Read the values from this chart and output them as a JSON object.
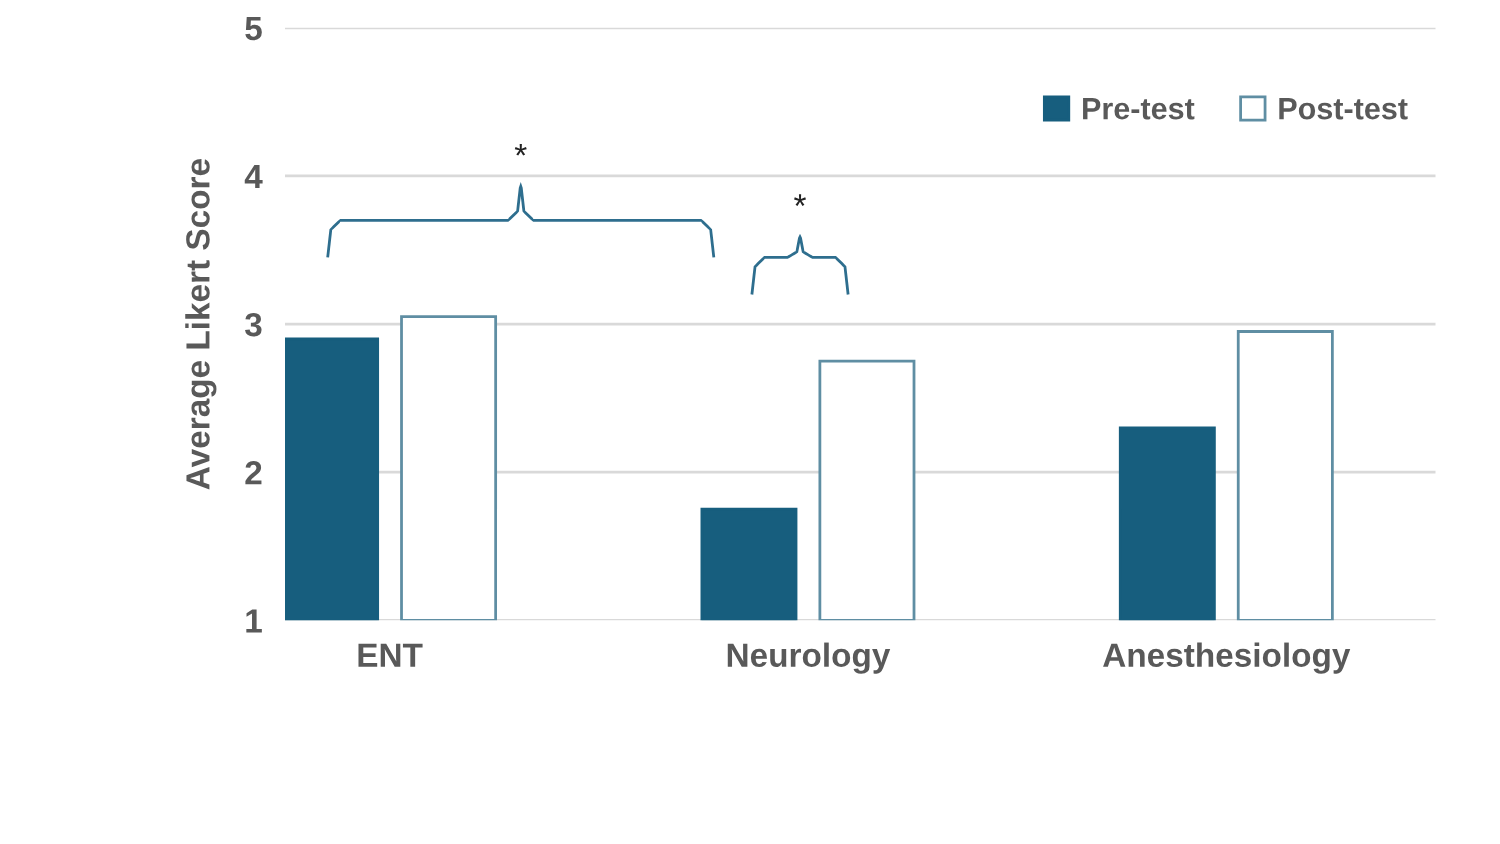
{
  "chart_data": {
    "type": "bar",
    "ylabel": "Average Likert Score",
    "categories": [
      "ENT",
      "Neurology",
      "Anesthesiology"
    ],
    "series": [
      {
        "name": "Pre-test",
        "color": "#175e7e",
        "values": [
          2.9,
          1.75,
          2.3
        ]
      },
      {
        "name": "Post-test",
        "color": "#ffffff",
        "values": [
          3.05,
          2.75,
          2.95
        ]
      }
    ],
    "ylim": [
      1,
      5
    ],
    "yticks": [
      1,
      2,
      3,
      4,
      5
    ],
    "grid": "y",
    "legend": "top right",
    "annotations": [
      "*",
      "*"
    ]
  }
}
